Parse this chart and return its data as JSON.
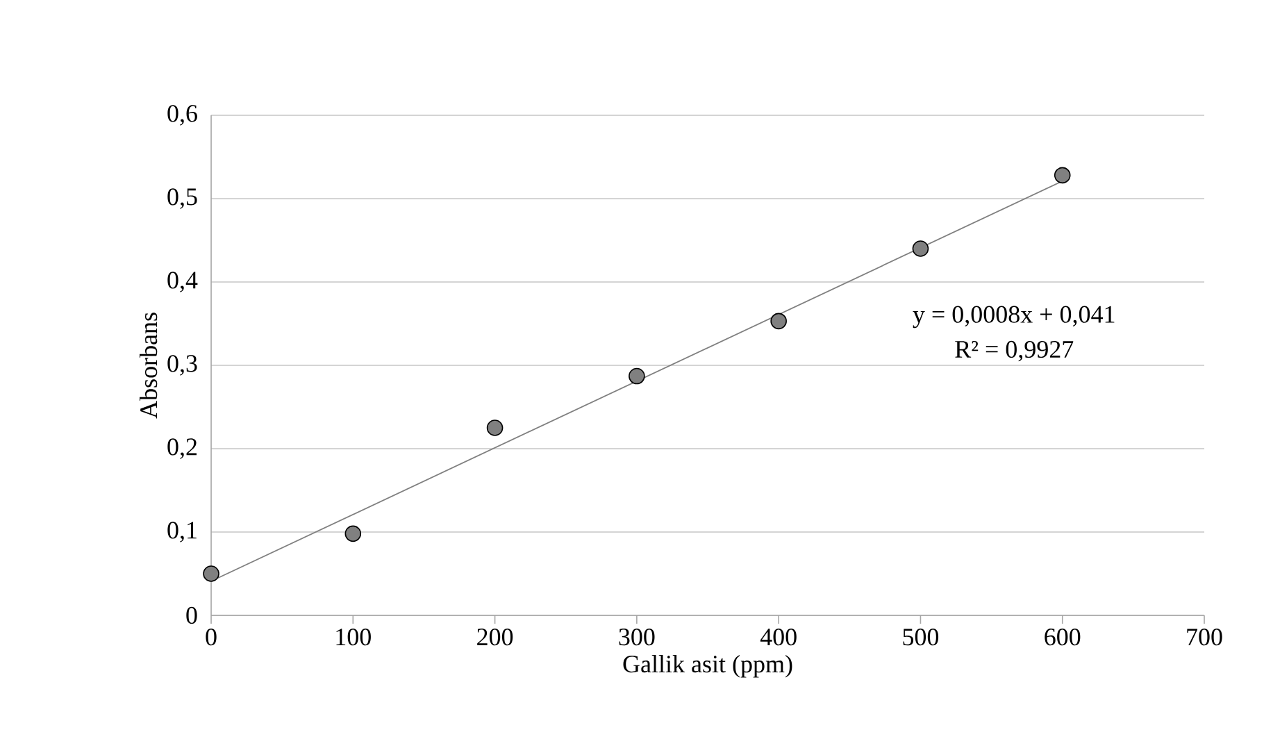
{
  "chart_data": {
    "type": "scatter",
    "xlabel": "Gallik asit (ppm)",
    "ylabel": "Absorbans",
    "xlim": [
      0,
      700
    ],
    "xticks": [
      0,
      100,
      200,
      300,
      400,
      500,
      600,
      700
    ],
    "ylim": [
      0,
      0.6
    ],
    "yticks": [
      0,
      {
        "value": 0.1,
        "label": "0,1"
      },
      {
        "value": 0.2,
        "label": "0,2"
      },
      {
        "value": 0.3,
        "label": "0,3"
      },
      {
        "value": 0.4,
        "label": "0,4"
      },
      {
        "value": 0.5,
        "label": "0,5"
      },
      {
        "value": 0.6,
        "label": "0,6"
      }
    ],
    "grid": "y",
    "series": [
      {
        "marker": "circle",
        "color": "#808080",
        "x": [
          0,
          100,
          200,
          300,
          400,
          500,
          600
        ],
        "values": [
          0.05,
          0.098,
          0.225,
          0.287,
          0.353,
          0.44,
          0.528
        ]
      },
      {
        "type": "line",
        "marker": "none",
        "color": "#808080",
        "x": [
          0,
          600
        ],
        "values": [
          0.041,
          0.521
        ]
      }
    ],
    "annotations": [
      "y = 0,0008x + 0,041",
      "R² = 0,9927"
    ]
  }
}
